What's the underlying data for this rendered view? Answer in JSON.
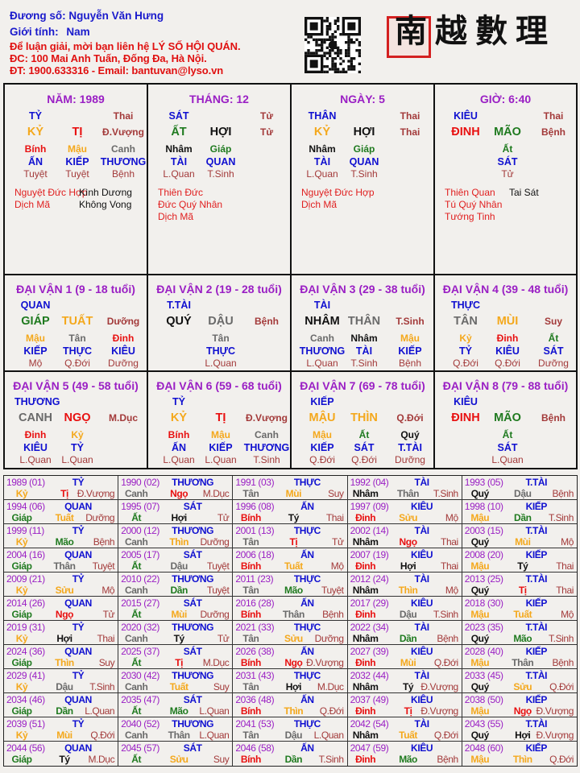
{
  "header": {
    "name_label": "Đương số:",
    "name": "Nguyễn Văn Hưng",
    "gender_label": "Giới tính:",
    "gender": "Nam",
    "contact_lines": [
      "Để luận giải, mời bạn liên hệ LÝ SỐ HỘI QUÁN.",
      "ĐC: 100 Mai Anh Tuấn, Đống Đa, Hà Nội.",
      "ĐT: 1900.633316 - Email: bantuvan@lyso.vn"
    ],
    "logo_text": "南越數理",
    "qr_icon": "qr-code"
  },
  "term_colors": {
    "Giáp": "#1f7a1f",
    "Ất": "#1f7a1f",
    "Bính": "#e81010",
    "Đinh": "#e81010",
    "Mậu": "#f4a81c",
    "Kỷ": "#f4a81c",
    "Canh": "#6a6a6a",
    "Tân": "#6a6a6a",
    "Nhâm": "#111111",
    "Quý": "#111111",
    "Tý": "#111111",
    "Hợi": "#111111",
    "Dần": "#1f7a1f",
    "Mão": "#1f7a1f",
    "Tị": "#e81010",
    "Ngọ": "#e81010",
    "Thìn": "#f4a81c",
    "Tuất": "#f4a81c",
    "Sửu": "#f4a81c",
    "Mùi": "#f4a81c",
    "Thân": "#6a6a6a",
    "Dậu": "#6a6a6a"
  },
  "pillars": [
    {
      "title": "NĂM: 1989",
      "star": "TỶ",
      "star_stage": "Thai",
      "stem": "KỶ",
      "branch": "TỊ",
      "stage": "Đ.Vượng",
      "hidden": [
        [
          "Bính",
          "ẤN",
          "Tuyệt"
        ],
        [
          "Mậu",
          "KIẾP",
          "Tuyệt"
        ],
        [
          "Canh",
          "THƯƠNG",
          "Bệnh"
        ]
      ],
      "stars_left": [
        "Nguyệt Đức Hợp",
        "Dịch Mã"
      ],
      "stars_right": [
        "Kình Dương",
        "Không Vong"
      ]
    },
    {
      "title": "THÁNG: 12",
      "star": "SÁT",
      "star_stage": "Tử",
      "stem": "ẤT",
      "branch": "HỢI",
      "stage": "Tử",
      "hidden": [
        [
          "Nhâm",
          "TÀI",
          "L.Quan"
        ],
        [
          "Giáp",
          "QUAN",
          "T.Sinh"
        ]
      ],
      "stars_left": [
        "Thiên Đức",
        "Đức Quý Nhân",
        "Dịch Mã"
      ],
      "stars_right": []
    },
    {
      "title": "NGÀY: 5",
      "star": "THÂN",
      "star_stage": "Thai",
      "stem": "KỶ",
      "branch": "HỢI",
      "stage": "Thai",
      "hidden": [
        [
          "Nhâm",
          "TÀI",
          "L.Quan"
        ],
        [
          "Giáp",
          "QUAN",
          "T.Sinh"
        ]
      ],
      "stars_left": [
        "Nguyệt Đức Hợp",
        "Dịch Mã"
      ],
      "stars_right": []
    },
    {
      "title": "GIỜ: 6:40",
      "star": "KIÊU",
      "star_stage": "Thai",
      "stem": "ĐINH",
      "branch": "MÃO",
      "stage": "Bệnh",
      "hidden": [
        [
          "Ất",
          "SÁT",
          "Tử"
        ]
      ],
      "stars_left": [
        "Thiên Quan",
        "Tú Quý Nhân",
        "Tướng Tinh"
      ],
      "stars_right": [
        "Tai Sát"
      ]
    }
  ],
  "dai_van": [
    {
      "title": "ĐẠI VẬN 1 (9 - 18 tuổi)",
      "star": "QUAN",
      "stem": "GIÁP",
      "branch": "TUẤT",
      "stage": "Dưỡng",
      "hidden": [
        [
          "Mậu",
          "KIẾP",
          "Mộ"
        ],
        [
          "Tân",
          "THỰC",
          "Q.Đới"
        ],
        [
          "Đinh",
          "KIÊU",
          "Dưỡng"
        ]
      ]
    },
    {
      "title": "ĐẠI VẬN 2 (19 - 28 tuổi)",
      "star": "T.TÀI",
      "stem": "QUÝ",
      "branch": "DẬU",
      "stage": "Bệnh",
      "hidden": [
        [
          "Tân",
          "THỰC",
          "L.Quan"
        ]
      ]
    },
    {
      "title": "ĐẠI VẬN 3 (29 - 38 tuổi)",
      "star": "TÀI",
      "stem": "NHÂM",
      "branch": "THÂN",
      "stage": "T.Sinh",
      "hidden": [
        [
          "Canh",
          "THƯƠNG",
          "L.Quan"
        ],
        [
          "Nhâm",
          "TÀI",
          "T.Sinh"
        ],
        [
          "Mậu",
          "KIẾP",
          "Bệnh"
        ]
      ]
    },
    {
      "title": "ĐẠI VẬN 4 (39 - 48 tuổi)",
      "star": "THỰC",
      "stem": "TÂN",
      "branch": "MÙI",
      "stage": "Suy",
      "hidden": [
        [
          "Kỷ",
          "TỶ",
          "Q.Đới"
        ],
        [
          "Đinh",
          "KIÊU",
          "Q.Đới"
        ],
        [
          "Ất",
          "SÁT",
          "Dưỡng"
        ]
      ]
    },
    {
      "title": "ĐẠI VẬN 5 (49 - 58 tuổi)",
      "star": "THƯƠNG",
      "stem": "CANH",
      "branch": "NGỌ",
      "stage": "M.Dục",
      "hidden": [
        [
          "Đinh",
          "KIÊU",
          "L.Quan"
        ],
        [
          "Kỷ",
          "TỶ",
          "L.Quan"
        ]
      ]
    },
    {
      "title": "ĐẠI VẬN 6 (59 - 68 tuổi)",
      "star": "TỶ",
      "stem": "KỶ",
      "branch": "TỊ",
      "stage": "Đ.Vượng",
      "hidden": [
        [
          "Bính",
          "ẤN",
          "L.Quan"
        ],
        [
          "Mậu",
          "KIẾP",
          "L.Quan"
        ],
        [
          "Canh",
          "THƯƠNG",
          "T.Sinh"
        ]
      ]
    },
    {
      "title": "ĐẠI VẬN 7 (69 - 78 tuổi)",
      "star": "KIẾP",
      "stem": "MẬU",
      "branch": "THÌN",
      "stage": "Q.Đới",
      "hidden": [
        [
          "Mậu",
          "KIẾP",
          "Q.Đới"
        ],
        [
          "Ất",
          "SÁT",
          "Q.Đới"
        ],
        [
          "Quý",
          "T.TÀI",
          "Dưỡng"
        ]
      ]
    },
    {
      "title": "ĐẠI VẬN 8 (79 - 88 tuổi)",
      "star": "KIÊU",
      "stem": "ĐINH",
      "branch": "MÃO",
      "stage": "Bệnh",
      "hidden": [
        [
          "Ất",
          "SÁT",
          "L.Quan"
        ]
      ]
    }
  ],
  "annual": [
    [
      "1989 (01)",
      "TỶ",
      "Kỷ",
      "Tị",
      "Đ.Vượng"
    ],
    [
      "1990 (02)",
      "THƯƠNG",
      "Canh",
      "Ngọ",
      "M.Dục"
    ],
    [
      "1991 (03)",
      "THỰC",
      "Tân",
      "Mùi",
      "Suy"
    ],
    [
      "1992 (04)",
      "TÀI",
      "Nhâm",
      "Thân",
      "T.Sinh"
    ],
    [
      "1993 (05)",
      "T.TÀI",
      "Quý",
      "Dậu",
      "Bệnh"
    ],
    [
      "1994 (06)",
      "QUAN",
      "Giáp",
      "Tuất",
      "Dưỡng"
    ],
    [
      "1995 (07)",
      "SÁT",
      "Ất",
      "Hợi",
      "Tử"
    ],
    [
      "1996 (08)",
      "ẤN",
      "Bính",
      "Tý",
      "Thai"
    ],
    [
      "1997 (09)",
      "KIÊU",
      "Đinh",
      "Sửu",
      "Mộ"
    ],
    [
      "1998 (10)",
      "KIẾP",
      "Mậu",
      "Dần",
      "T.Sinh"
    ],
    [
      "1999 (11)",
      "TỶ",
      "Kỷ",
      "Mão",
      "Bệnh"
    ],
    [
      "2000 (12)",
      "THƯƠNG",
      "Canh",
      "Thìn",
      "Dưỡng"
    ],
    [
      "2001 (13)",
      "THỰC",
      "Tân",
      "Tị",
      "Tử"
    ],
    [
      "2002 (14)",
      "TÀI",
      "Nhâm",
      "Ngọ",
      "Thai"
    ],
    [
      "2003 (15)",
      "T.TÀI",
      "Quý",
      "Mùi",
      "Mộ"
    ],
    [
      "2004 (16)",
      "QUAN",
      "Giáp",
      "Thân",
      "Tuyệt"
    ],
    [
      "2005 (17)",
      "SÁT",
      "Ất",
      "Dậu",
      "Tuyệt"
    ],
    [
      "2006 (18)",
      "ẤN",
      "Bính",
      "Tuất",
      "Mộ"
    ],
    [
      "2007 (19)",
      "KIÊU",
      "Đinh",
      "Hợi",
      "Thai"
    ],
    [
      "2008 (20)",
      "KIẾP",
      "Mậu",
      "Tý",
      "Thai"
    ],
    [
      "2009 (21)",
      "TỶ",
      "Kỷ",
      "Sửu",
      "Mộ"
    ],
    [
      "2010 (22)",
      "THƯƠNG",
      "Canh",
      "Dần",
      "Tuyệt"
    ],
    [
      "2011 (23)",
      "THỰC",
      "Tân",
      "Mão",
      "Tuyệt"
    ],
    [
      "2012 (24)",
      "TÀI",
      "Nhâm",
      "Thìn",
      "Mộ"
    ],
    [
      "2013 (25)",
      "T.TÀI",
      "Quý",
      "Tị",
      "Thai"
    ],
    [
      "2014 (26)",
      "QUAN",
      "Giáp",
      "Ngọ",
      "Tử"
    ],
    [
      "2015 (27)",
      "SÁT",
      "Ất",
      "Mùi",
      "Dưỡng"
    ],
    [
      "2016 (28)",
      "ẤN",
      "Bính",
      "Thân",
      "Bệnh"
    ],
    [
      "2017 (29)",
      "KIÊU",
      "Đinh",
      "Dậu",
      "T.Sinh"
    ],
    [
      "2018 (30)",
      "KIẾP",
      "Mậu",
      "Tuất",
      "Mộ"
    ],
    [
      "2019 (31)",
      "TỶ",
      "Kỷ",
      "Hợi",
      "Thai"
    ],
    [
      "2020 (32)",
      "THƯƠNG",
      "Canh",
      "Tý",
      "Tử"
    ],
    [
      "2021 (33)",
      "THỰC",
      "Tân",
      "Sửu",
      "Dưỡng"
    ],
    [
      "2022 (34)",
      "TÀI",
      "Nhâm",
      "Dần",
      "Bệnh"
    ],
    [
      "2023 (35)",
      "T.TÀI",
      "Quý",
      "Mão",
      "T.Sinh"
    ],
    [
      "2024 (36)",
      "QUAN",
      "Giáp",
      "Thìn",
      "Suy"
    ],
    [
      "2025 (37)",
      "SÁT",
      "Ất",
      "Tị",
      "M.Dục"
    ],
    [
      "2026 (38)",
      "ẤN",
      "Bính",
      "Ngọ",
      "Đ.Vượng"
    ],
    [
      "2027 (39)",
      "KIÊU",
      "Đinh",
      "Mùi",
      "Q.Đới"
    ],
    [
      "2028 (40)",
      "KIẾP",
      "Mậu",
      "Thân",
      "Bệnh"
    ],
    [
      "2029 (41)",
      "TỶ",
      "Kỷ",
      "Dậu",
      "T.Sinh"
    ],
    [
      "2030 (42)",
      "THƯƠNG",
      "Canh",
      "Tuất",
      "Suy"
    ],
    [
      "2031 (43)",
      "THỰC",
      "Tân",
      "Hợi",
      "M.Dục"
    ],
    [
      "2032 (44)",
      "TÀI",
      "Nhâm",
      "Tý",
      "Đ.Vượng"
    ],
    [
      "2033 (45)",
      "T.TÀI",
      "Quý",
      "Sửu",
      "Q.Đới"
    ],
    [
      "2034 (46)",
      "QUAN",
      "Giáp",
      "Dần",
      "L.Quan"
    ],
    [
      "2035 (47)",
      "SÁT",
      "Ất",
      "Mão",
      "L.Quan"
    ],
    [
      "2036 (48)",
      "ẤN",
      "Bính",
      "Thìn",
      "Q.Đới"
    ],
    [
      "2037 (49)",
      "KIÊU",
      "Đinh",
      "Tị",
      "Đ.Vượng"
    ],
    [
      "2038 (50)",
      "KIẾP",
      "Mậu",
      "Ngọ",
      "Đ.Vượng"
    ],
    [
      "2039 (51)",
      "TỶ",
      "Kỷ",
      "Mùi",
      "Q.Đới"
    ],
    [
      "2040 (52)",
      "THƯƠNG",
      "Canh",
      "Thân",
      "L.Quan"
    ],
    [
      "2041 (53)",
      "THỰC",
      "Tân",
      "Dậu",
      "L.Quan"
    ],
    [
      "2042 (54)",
      "TÀI",
      "Nhâm",
      "Tuất",
      "Q.Đới"
    ],
    [
      "2043 (55)",
      "T.TÀI",
      "Quý",
      "Hợi",
      "Đ.Vượng"
    ],
    [
      "2044 (56)",
      "QUAN",
      "Giáp",
      "Tý",
      "M.Dục"
    ],
    [
      "2045 (57)",
      "SÁT",
      "Ất",
      "Sửu",
      "Suy"
    ],
    [
      "2046 (58)",
      "ẤN",
      "Bính",
      "Dần",
      "T.Sinh"
    ],
    [
      "2047 (59)",
      "KIÊU",
      "Đinh",
      "Mão",
      "Bệnh"
    ],
    [
      "2048 (60)",
      "KIẾP",
      "Mậu",
      "Thìn",
      "Q.Đới"
    ]
  ]
}
